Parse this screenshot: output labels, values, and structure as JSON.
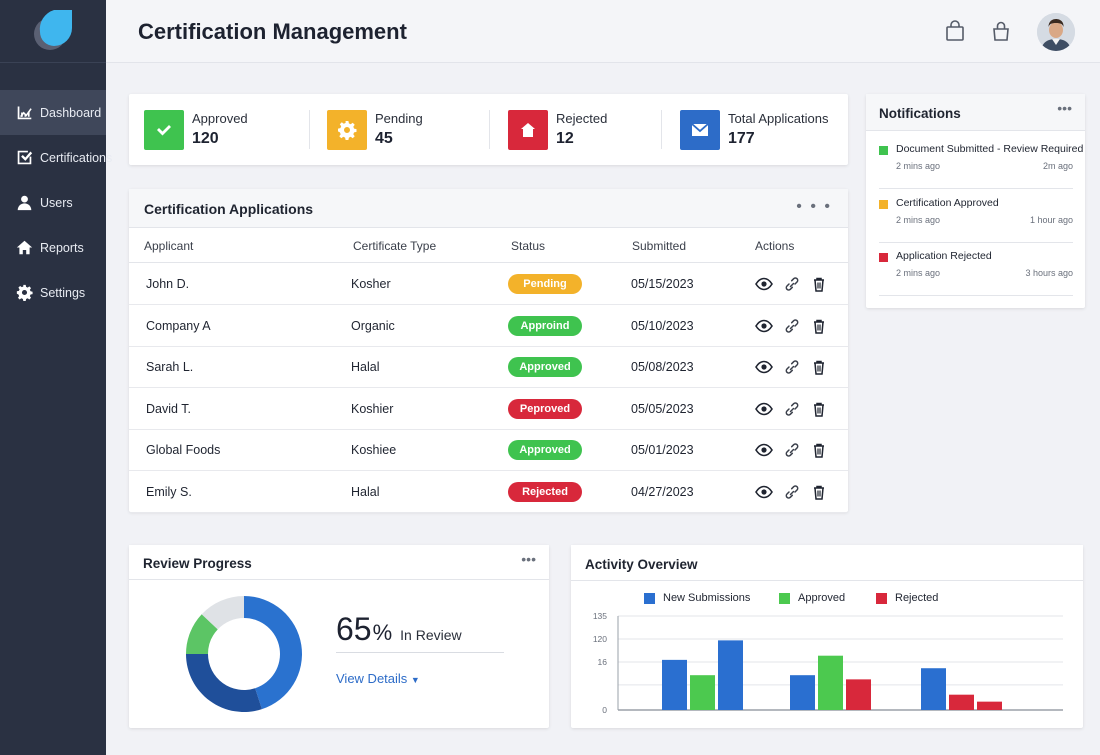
{
  "header": {
    "title": "Certification Management"
  },
  "sidebar": {
    "items": [
      {
        "label": "Dashboard",
        "icon": "chart-icon",
        "active": true
      },
      {
        "label": "Certifications",
        "icon": "checklist-icon",
        "active": false
      },
      {
        "label": "Users",
        "icon": "user-icon",
        "active": false
      },
      {
        "label": "Reports",
        "icon": "home-icon",
        "active": false
      },
      {
        "label": "Settings",
        "icon": "gear-icon",
        "active": false
      }
    ]
  },
  "stats": [
    {
      "label": "Approved",
      "value": "120",
      "color": "#3fc34f",
      "icon": "check-icon"
    },
    {
      "label": "Pending",
      "value": "45",
      "color": "#f3b22a",
      "icon": "gear-icon"
    },
    {
      "label": "Rejected",
      "value": "12",
      "color": "#d8283b",
      "icon": "home-icon"
    },
    {
      "label": "Total Applications",
      "value": "177",
      "color": "#2d6cc8",
      "icon": "mail-icon"
    }
  ],
  "applications": {
    "title": "Certification Applications",
    "columns": [
      "Applicant",
      "Certificate Type",
      "Status",
      "Submitted",
      "Actions"
    ],
    "rows": [
      {
        "applicant": "John D.",
        "type": "Kosher",
        "status": "Pending",
        "status_color": "#f3b22a",
        "submitted": "05/15/2023"
      },
      {
        "applicant": "Company A",
        "type": "Organic",
        "status": "Approind",
        "status_color": "#3fc34f",
        "submitted": "05/10/2023"
      },
      {
        "applicant": "Sarah L.",
        "type": "Halal",
        "status": "Approved",
        "status_color": "#3fc34f",
        "submitted": "05/08/2023"
      },
      {
        "applicant": "David T.",
        "type": "Koshier",
        "status": "Peproved",
        "status_color": "#d8283b",
        "submitted": "05/05/2023"
      },
      {
        "applicant": "Global Foods",
        "type": "Koshiee",
        "status": "Approved",
        "status_color": "#3fc34f",
        "submitted": "05/01/2023"
      },
      {
        "applicant": "Emily S.",
        "type": "Halal",
        "status": "Rejected",
        "status_color": "#d8283b",
        "submitted": "04/27/2023"
      }
    ]
  },
  "notifications": {
    "title": "Notifications",
    "items": [
      {
        "text": "Document Submitted - Review Required",
        "ago": "2 mins ago",
        "right": "2m ago",
        "color": "#3fc34f"
      },
      {
        "text": "Certification Approved",
        "ago": "2 mins ago",
        "right": "1 hour ago",
        "color": "#f3b22a"
      },
      {
        "text": "Application Rejected",
        "ago": "2 mins ago",
        "right": "3 hours ago",
        "color": "#d8283b"
      }
    ]
  },
  "review": {
    "title": "Review Progress",
    "percent": "65",
    "percent_sign": "%",
    "label": "In Review",
    "link": "View Details",
    "donut": [
      {
        "value": 45,
        "color": "#2a72cf"
      },
      {
        "value": 30,
        "color": "#1f4f9a"
      },
      {
        "value": 12,
        "color": "#5cc565"
      },
      {
        "value": 13,
        "color": "#dfe2e6"
      }
    ]
  },
  "activity": {
    "title": "Activity Overview"
  },
  "chart_data": {
    "type": "bar",
    "categories": [
      "",
      "",
      ""
    ],
    "yticks": [
      "135",
      "120",
      "16",
      "0"
    ],
    "ylim": [
      0,
      135
    ],
    "series": [
      {
        "name": "New Submissions",
        "color": "#2a6fd0",
        "values": [
          72,
          100,
          60
        ]
      },
      {
        "name": "Approved",
        "color": "#4cc94f",
        "values": [
          50,
          78,
          0
        ]
      },
      {
        "name": "Rejected",
        "color": "#d8283b",
        "values": [
          0,
          44,
          22
        ]
      }
    ],
    "extra_series_values": {
      "Rejected": [
        0,
        44,
        22
      ],
      "Rejected_small": [
        0,
        0,
        12
      ]
    },
    "title": "",
    "xlabel": "",
    "ylabel": "",
    "grid": true,
    "legend": "top"
  }
}
